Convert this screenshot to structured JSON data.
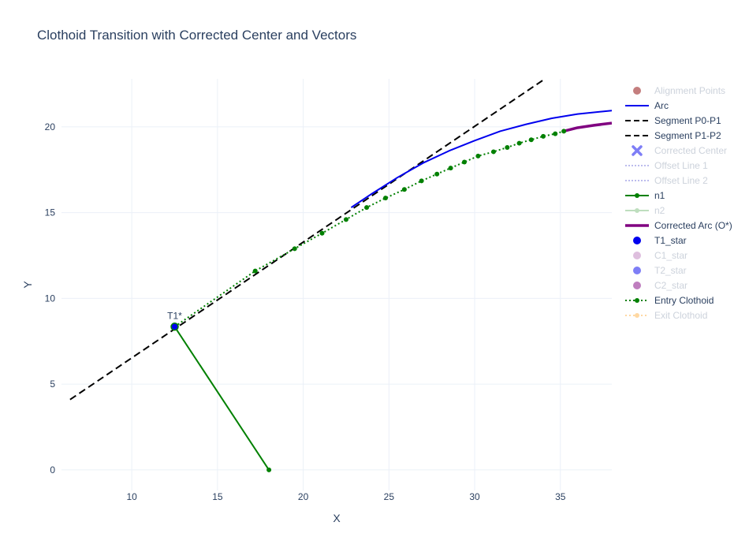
{
  "chart_data": {
    "type": "line",
    "title": "Clothoid Transition with Corrected Center and Vectors",
    "xlabel": "X",
    "ylabel": "Y",
    "xlim": [
      5.9,
      38.0
    ],
    "ylim": [
      -1.2,
      22.8
    ],
    "xticks": [
      10,
      15,
      20,
      25,
      30,
      35
    ],
    "yticks": [
      0,
      5,
      10,
      15,
      20
    ],
    "grid": true,
    "legend_position": "right",
    "annotations": [
      {
        "text": "T1*",
        "x": 12.5,
        "y": 8.35
      }
    ],
    "series": [
      {
        "name": "Alignment Points",
        "kind": "markers",
        "color": "#8b0000",
        "visible": false,
        "points": []
      },
      {
        "name": "Arc",
        "kind": "line",
        "color": "#0000ee",
        "visible": true,
        "points": [
          [
            22.8,
            15.3
          ],
          [
            24.0,
            16.1
          ],
          [
            25.5,
            17.05
          ],
          [
            27.0,
            17.9
          ],
          [
            28.5,
            18.6
          ],
          [
            30.0,
            19.2
          ],
          [
            31.5,
            19.75
          ],
          [
            33.0,
            20.15
          ],
          [
            34.5,
            20.5
          ],
          [
            36.0,
            20.75
          ],
          [
            38.0,
            20.95
          ]
        ]
      },
      {
        "name": "Segment P0-P1",
        "kind": "dash",
        "color": "#000000",
        "visible": true,
        "points": [
          [
            6.4,
            4.1
          ],
          [
            34.1,
            22.8
          ]
        ]
      },
      {
        "name": "Segment P1-P2",
        "kind": "dash",
        "color": "#000000",
        "visible": true,
        "points": []
      },
      {
        "name": "Corrected Center",
        "kind": "x-marker",
        "color": "#0000ee",
        "visible": false,
        "points": []
      },
      {
        "name": "Offset Line 1",
        "kind": "dot",
        "color": "#7b7bdd",
        "visible": false,
        "points": []
      },
      {
        "name": "Offset Line 2",
        "kind": "dot",
        "color": "#7b7bdd",
        "visible": false,
        "points": []
      },
      {
        "name": "n1",
        "kind": "lines+markers",
        "color": "#008000",
        "visible": true,
        "points": [
          [
            12.5,
            8.35
          ],
          [
            18.0,
            0.0
          ]
        ]
      },
      {
        "name": "n2",
        "kind": "lines+markers",
        "color": "#7fbf7f",
        "visible": false,
        "points": []
      },
      {
        "name": "Corrected Arc (O*)",
        "kind": "thick",
        "color": "#800080",
        "visible": true,
        "points": [
          [
            35.2,
            19.75
          ],
          [
            36.0,
            19.95
          ],
          [
            37.0,
            20.1
          ],
          [
            38.0,
            20.22
          ]
        ]
      },
      {
        "name": "T1_star",
        "kind": "marker",
        "color": "#0000ee",
        "visible": true,
        "points": [
          [
            12.5,
            8.35
          ]
        ]
      },
      {
        "name": "C1_star",
        "kind": "marker",
        "color": "#bf80bf",
        "visible": false,
        "points": []
      },
      {
        "name": "T2_star",
        "kind": "marker",
        "color": "#0000ee",
        "visible": false,
        "points": []
      },
      {
        "name": "C2_star",
        "kind": "marker",
        "color": "#800080",
        "visible": false,
        "points": []
      },
      {
        "name": "Entry Clothoid",
        "kind": "dotted+markers",
        "color": "#008000",
        "visible": true,
        "points": [
          [
            12.5,
            8.35
          ],
          [
            17.2,
            11.6
          ],
          [
            19.5,
            12.9
          ],
          [
            21.1,
            13.8
          ],
          [
            22.5,
            14.6
          ],
          [
            23.7,
            15.3
          ],
          [
            24.8,
            15.85
          ],
          [
            25.9,
            16.35
          ],
          [
            26.9,
            16.85
          ],
          [
            27.8,
            17.25
          ],
          [
            28.6,
            17.6
          ],
          [
            29.4,
            17.95
          ],
          [
            30.2,
            18.3
          ],
          [
            31.1,
            18.55
          ],
          [
            31.9,
            18.8
          ],
          [
            32.6,
            19.05
          ],
          [
            33.3,
            19.25
          ],
          [
            34.0,
            19.45
          ],
          [
            34.7,
            19.6
          ],
          [
            35.2,
            19.75
          ]
        ]
      },
      {
        "name": "Exit Clothoid",
        "kind": "dotted+markers",
        "color": "#ffb347",
        "visible": false,
        "points": []
      }
    ]
  }
}
